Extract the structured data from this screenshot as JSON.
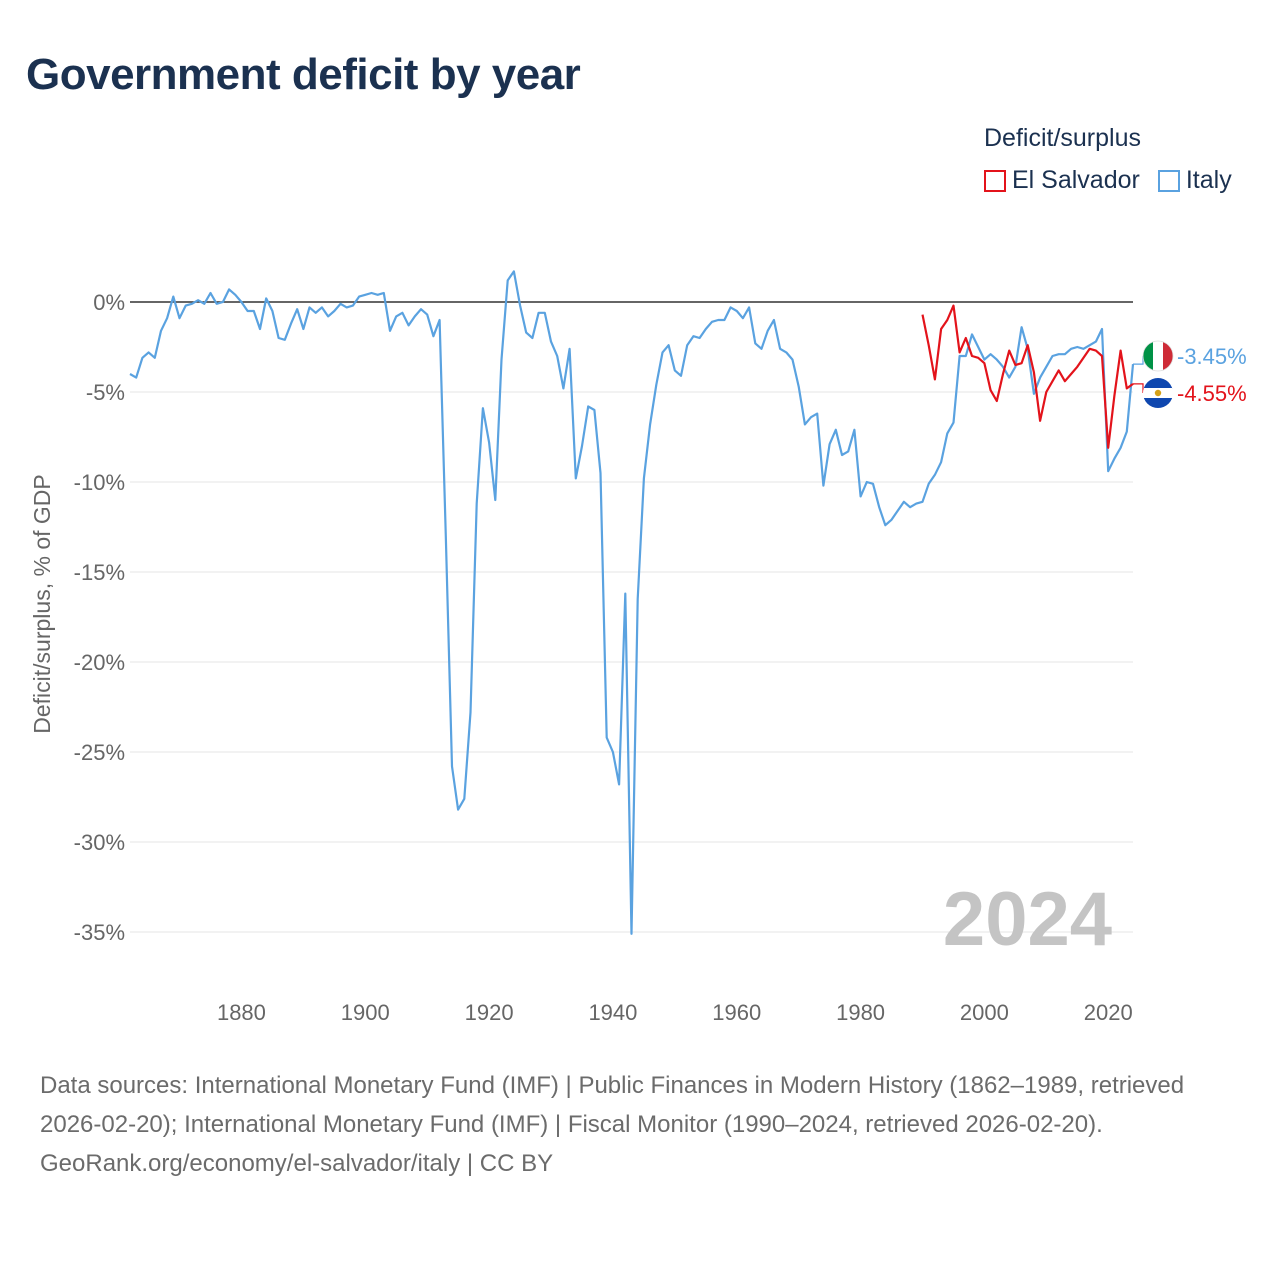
{
  "title": "Government deficit by year",
  "legend": {
    "title": "Deficit/surplus",
    "items": [
      {
        "label": "El Salvador",
        "color": "#e3131b"
      },
      {
        "label": "Italy",
        "color": "#5aa2e0"
      }
    ]
  },
  "footer": {
    "sources": "Data sources: International Monetary Fund (IMF) | Public Finances in Modern History (1862–1989, retrieved 2026-02-20); International Monetary Fund (IMF) | Fiscal Monitor (1990–2024, retrieved 2026-02-20).",
    "credit": "GeoRank.org/economy/el-salvador/italy | CC BY"
  },
  "chart_data": {
    "type": "line",
    "title": "Government deficit by year",
    "ylabel": "Deficit/surplus, % of GDP",
    "xlabel": "",
    "xlim": [
      1862,
      2024
    ],
    "ylim": [
      -37,
      2
    ],
    "y_ticks": [
      0,
      -5,
      -10,
      -15,
      -20,
      -25,
      -30,
      -35
    ],
    "y_tick_labels": [
      "0%",
      "-5%",
      "-10%",
      "-15%",
      "-20%",
      "-25%",
      "-30%",
      "-35%"
    ],
    "x_ticks": [
      1880,
      1900,
      1920,
      1940,
      1960,
      1980,
      2000,
      2020
    ],
    "x_tick_labels": [
      "1880",
      "1900",
      "1920",
      "1940",
      "1960",
      "1980",
      "2000",
      "2020"
    ],
    "year_watermark": "2024",
    "series": [
      {
        "name": "Italy",
        "color": "#5aa2e0",
        "end_label": "-3.45%",
        "flag": "Italy",
        "x": [
          1862,
          1863,
          1864,
          1865,
          1866,
          1867,
          1868,
          1869,
          1870,
          1871,
          1872,
          1873,
          1874,
          1875,
          1876,
          1877,
          1878,
          1879,
          1880,
          1881,
          1882,
          1883,
          1884,
          1885,
          1886,
          1887,
          1888,
          1889,
          1890,
          1891,
          1892,
          1893,
          1894,
          1895,
          1896,
          1897,
          1898,
          1899,
          1900,
          1901,
          1902,
          1903,
          1904,
          1905,
          1906,
          1907,
          1908,
          1909,
          1910,
          1911,
          1912,
          1913,
          1914,
          1915,
          1916,
          1917,
          1918,
          1919,
          1920,
          1921,
          1922,
          1923,
          1924,
          1925,
          1926,
          1927,
          1928,
          1929,
          1930,
          1931,
          1932,
          1933,
          1934,
          1935,
          1936,
          1937,
          1938,
          1939,
          1940,
          1941,
          1942,
          1943,
          1944,
          1945,
          1946,
          1947,
          1948,
          1949,
          1950,
          1951,
          1952,
          1953,
          1954,
          1955,
          1956,
          1957,
          1958,
          1959,
          1960,
          1961,
          1962,
          1963,
          1964,
          1965,
          1966,
          1967,
          1968,
          1969,
          1970,
          1971,
          1972,
          1973,
          1974,
          1975,
          1976,
          1977,
          1978,
          1979,
          1980,
          1981,
          1982,
          1983,
          1984,
          1985,
          1986,
          1987,
          1988,
          1989,
          1990,
          1991,
          1992,
          1993,
          1994,
          1995,
          1996,
          1997,
          1998,
          1999,
          2000,
          2001,
          2002,
          2003,
          2004,
          2005,
          2006,
          2007,
          2008,
          2009,
          2010,
          2011,
          2012,
          2013,
          2014,
          2015,
          2016,
          2017,
          2018,
          2019,
          2020,
          2021,
          2022,
          2023,
          2024
        ],
        "values": [
          -4.0,
          -4.2,
          -3.1,
          -2.8,
          -3.1,
          -1.6,
          -0.9,
          0.3,
          -0.9,
          -0.2,
          -0.1,
          0.1,
          -0.1,
          0.5,
          -0.1,
          0.0,
          0.7,
          0.4,
          0.0,
          -0.5,
          -0.5,
          -1.5,
          0.2,
          -0.5,
          -2.0,
          -2.1,
          -1.2,
          -0.4,
          -1.5,
          -0.3,
          -0.6,
          -0.3,
          -0.8,
          -0.5,
          -0.1,
          -0.3,
          -0.2,
          0.3,
          0.4,
          0.5,
          0.4,
          0.5,
          -1.6,
          -0.8,
          -0.6,
          -1.3,
          -0.8,
          -0.4,
          -0.7,
          -1.9,
          -1.0,
          -13.0,
          -25.8,
          -28.2,
          -27.6,
          -22.8,
          -11.2,
          -5.9,
          -7.8,
          -11.0,
          -3.2,
          1.2,
          1.7,
          -0.2,
          -1.7,
          -2.0,
          -0.6,
          -0.6,
          -2.2,
          -3.0,
          -4.8,
          -2.6,
          -9.8,
          -8.0,
          -5.8,
          -6.0,
          -9.5,
          -24.2,
          -25.0,
          -26.8,
          -16.2,
          -35.1,
          -16.5,
          -9.8,
          -6.8,
          -4.6,
          -2.8,
          -2.4,
          -3.8,
          -4.1,
          -2.4,
          -1.9,
          -2.0,
          -1.5,
          -1.1,
          -1.0,
          -1.0,
          -0.3,
          -0.5,
          -0.9,
          -0.3,
          -2.3,
          -2.6,
          -1.6,
          -1.0,
          -2.6,
          -2.8,
          -3.2,
          -4.7,
          -6.8,
          -6.4,
          -6.2,
          -10.2,
          -7.9,
          -7.1,
          -8.5,
          -8.3,
          -7.1,
          -10.8,
          -10.0,
          -10.1,
          -11.4,
          -12.4,
          -12.1,
          -11.6,
          -11.1,
          -11.4,
          -11.2,
          -11.1,
          -10.1,
          -9.6,
          -8.9,
          -7.3,
          -6.7,
          -3.0,
          -3.0,
          -1.8,
          -2.5,
          -3.2,
          -2.9,
          -3.2,
          -3.6,
          -4.2,
          -3.6,
          -1.4,
          -2.6,
          -5.1,
          -4.2,
          -3.6,
          -3.0,
          -2.9,
          -2.9,
          -2.6,
          -2.5,
          -2.6,
          -2.4,
          -2.2,
          -1.5,
          -9.4,
          -8.7,
          -8.1,
          -7.2,
          -3.45
        ]
      },
      {
        "name": "El Salvador",
        "color": "#e3131b",
        "end_label": "-4.55%",
        "flag": "El Salvador",
        "x": [
          1990,
          1991,
          1992,
          1993,
          1994,
          1995,
          1996,
          1997,
          1998,
          1999,
          2000,
          2001,
          2002,
          2003,
          2004,
          2005,
          2006,
          2007,
          2008,
          2009,
          2010,
          2011,
          2012,
          2013,
          2014,
          2015,
          2016,
          2017,
          2018,
          2019,
          2020,
          2021,
          2022,
          2023,
          2024
        ],
        "values": [
          -0.7,
          -2.4,
          -4.3,
          -1.5,
          -1.0,
          -0.2,
          -2.8,
          -2.0,
          -3.0,
          -3.1,
          -3.4,
          -4.9,
          -5.5,
          -4.0,
          -2.7,
          -3.5,
          -3.4,
          -2.4,
          -3.9,
          -6.6,
          -5.0,
          -4.4,
          -3.8,
          -4.4,
          -4.0,
          -3.6,
          -3.1,
          -2.6,
          -2.7,
          -3.0,
          -8.1,
          -5.2,
          -2.7,
          -4.8,
          -4.55
        ]
      }
    ]
  }
}
